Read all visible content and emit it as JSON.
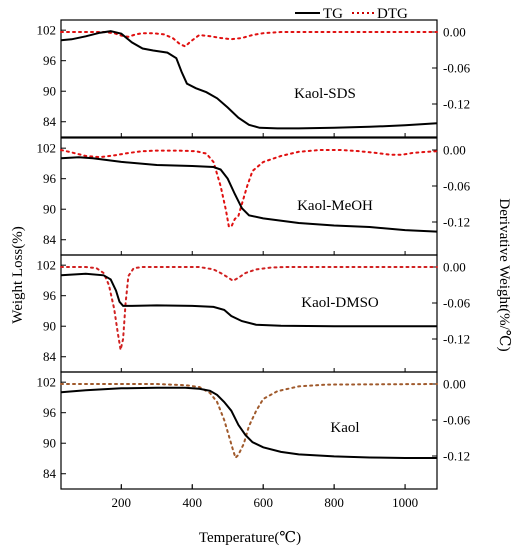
{
  "chart_data": {
    "type": "line",
    "xlabel": "Temperature(℃)",
    "ylabel_left": "Weight Loss(%)",
    "ylabel_right": "Derivative Weight(%/℃)",
    "xlim": [
      30,
      1090
    ],
    "x_ticks": [
      200,
      400,
      600,
      800,
      1000
    ],
    "x_tick_labels": [
      "200",
      "400",
      "600",
      "800",
      "1000"
    ],
    "tg_ylim": [
      81,
      104
    ],
    "tg_ticks": [
      84,
      90,
      96,
      102
    ],
    "tg_tick_labels": [
      "84",
      "90",
      "96",
      "102"
    ],
    "dtg_ylim": [
      -0.175,
      0.02
    ],
    "dtg_ticks": [
      0.0,
      -0.06,
      -0.12
    ],
    "dtg_tick_labels": [
      "0.00",
      "-0.06",
      "-0.12"
    ],
    "legend": {
      "placement": "top-right",
      "entries": [
        {
          "label": "TG",
          "color": "#000000",
          "style": "solid"
        },
        {
          "label": "DTG",
          "color": "#cc0000",
          "style": "dotted"
        }
      ]
    },
    "panels": [
      {
        "label": "Kaol-SDS",
        "dtg_color": "#e01010",
        "tg": [
          [
            30,
            100
          ],
          [
            60,
            100.2
          ],
          [
            100,
            100.8
          ],
          [
            140,
            101.5
          ],
          [
            170,
            101.8
          ],
          [
            200,
            101.3
          ],
          [
            230,
            99.6
          ],
          [
            260,
            98.4
          ],
          [
            290,
            98.0
          ],
          [
            330,
            97.6
          ],
          [
            355,
            96.5
          ],
          [
            370,
            93.8
          ],
          [
            385,
            91.5
          ],
          [
            410,
            90.6
          ],
          [
            440,
            89.8
          ],
          [
            470,
            88.6
          ],
          [
            500,
            86.8
          ],
          [
            530,
            84.8
          ],
          [
            560,
            83.4
          ],
          [
            590,
            82.8
          ],
          [
            640,
            82.7
          ],
          [
            700,
            82.7
          ],
          [
            800,
            82.8
          ],
          [
            900,
            83.0
          ],
          [
            1000,
            83.3
          ],
          [
            1090,
            83.7
          ]
        ],
        "dtg": [
          [
            30,
            0.0
          ],
          [
            100,
            0.0
          ],
          [
            150,
            0.0
          ],
          [
            180,
            -0.002
          ],
          [
            200,
            -0.006
          ],
          [
            220,
            -0.008
          ],
          [
            240,
            -0.004
          ],
          [
            260,
            -0.002
          ],
          [
            290,
            -0.002
          ],
          [
            320,
            -0.004
          ],
          [
            345,
            -0.01
          ],
          [
            365,
            -0.02
          ],
          [
            380,
            -0.024
          ],
          [
            395,
            -0.016
          ],
          [
            420,
            -0.005
          ],
          [
            450,
            -0.007
          ],
          [
            480,
            -0.01
          ],
          [
            510,
            -0.012
          ],
          [
            540,
            -0.01
          ],
          [
            570,
            -0.005
          ],
          [
            600,
            -0.002
          ],
          [
            650,
            0.0
          ],
          [
            1090,
            0.0
          ]
        ]
      },
      {
        "label": "Kaol-MeOH",
        "dtg_color": "#e01010",
        "tg": [
          [
            30,
            100
          ],
          [
            80,
            100.2
          ],
          [
            120,
            100.0
          ],
          [
            200,
            99.3
          ],
          [
            300,
            98.7
          ],
          [
            400,
            98.5
          ],
          [
            460,
            98.3
          ],
          [
            480,
            97.8
          ],
          [
            500,
            96.0
          ],
          [
            520,
            93.0
          ],
          [
            540,
            90.2
          ],
          [
            560,
            88.8
          ],
          [
            600,
            88.2
          ],
          [
            700,
            87.3
          ],
          [
            800,
            86.8
          ],
          [
            900,
            86.5
          ],
          [
            1000,
            85.9
          ],
          [
            1090,
            85.6
          ]
        ],
        "dtg": [
          [
            30,
            0.0
          ],
          [
            60,
            -0.004
          ],
          [
            100,
            -0.01
          ],
          [
            140,
            -0.012
          ],
          [
            180,
            -0.009
          ],
          [
            220,
            -0.005
          ],
          [
            260,
            -0.002
          ],
          [
            300,
            -0.001
          ],
          [
            360,
            -0.001
          ],
          [
            410,
            -0.002
          ],
          [
            440,
            -0.006
          ],
          [
            460,
            -0.02
          ],
          [
            480,
            -0.06
          ],
          [
            495,
            -0.1
          ],
          [
            503,
            -0.127
          ],
          [
            510,
            -0.128
          ],
          [
            520,
            -0.115
          ],
          [
            530,
            -0.11
          ],
          [
            540,
            -0.09
          ],
          [
            555,
            -0.06
          ],
          [
            570,
            -0.035
          ],
          [
            600,
            -0.02
          ],
          [
            650,
            -0.01
          ],
          [
            700,
            -0.003
          ],
          [
            760,
            0.0
          ],
          [
            820,
            0.0
          ],
          [
            870,
            -0.002
          ],
          [
            920,
            -0.005
          ],
          [
            960,
            -0.008
          ],
          [
            990,
            -0.008
          ],
          [
            1020,
            -0.005
          ],
          [
            1060,
            -0.003
          ],
          [
            1090,
            -0.002
          ]
        ]
      },
      {
        "label": "Kaol-DMSO",
        "dtg_color": "#d02020",
        "tg": [
          [
            30,
            100
          ],
          [
            100,
            100.3
          ],
          [
            150,
            100.0
          ],
          [
            170,
            99.2
          ],
          [
            185,
            97.0
          ],
          [
            195,
            94.8
          ],
          [
            205,
            94.0
          ],
          [
            230,
            94.0
          ],
          [
            300,
            94.1
          ],
          [
            400,
            94.0
          ],
          [
            460,
            93.8
          ],
          [
            490,
            93.2
          ],
          [
            510,
            92.0
          ],
          [
            540,
            91.0
          ],
          [
            580,
            90.3
          ],
          [
            650,
            90.1
          ],
          [
            800,
            90.0
          ],
          [
            1090,
            90.0
          ]
        ],
        "dtg": [
          [
            30,
            0.0
          ],
          [
            100,
            0.0
          ],
          [
            130,
            -0.002
          ],
          [
            150,
            -0.01
          ],
          [
            165,
            -0.03
          ],
          [
            180,
            -0.07
          ],
          [
            190,
            -0.11
          ],
          [
            198,
            -0.138
          ],
          [
            205,
            -0.12
          ],
          [
            212,
            -0.06
          ],
          [
            220,
            -0.015
          ],
          [
            235,
            -0.002
          ],
          [
            260,
            0.0
          ],
          [
            420,
            0.0
          ],
          [
            460,
            -0.004
          ],
          [
            480,
            -0.01
          ],
          [
            500,
            -0.017
          ],
          [
            515,
            -0.023
          ],
          [
            530,
            -0.018
          ],
          [
            550,
            -0.01
          ],
          [
            580,
            -0.004
          ],
          [
            620,
            -0.001
          ],
          [
            660,
            0.0
          ],
          [
            1090,
            0.0
          ]
        ]
      },
      {
        "label": "Kaol",
        "dtg_color": "#a05a2c",
        "tg": [
          [
            30,
            100
          ],
          [
            100,
            100.4
          ],
          [
            200,
            100.8
          ],
          [
            300,
            100.9
          ],
          [
            380,
            100.9
          ],
          [
            420,
            100.7
          ],
          [
            450,
            100.3
          ],
          [
            470,
            99.5
          ],
          [
            490,
            98.1
          ],
          [
            510,
            96.4
          ],
          [
            530,
            93.6
          ],
          [
            550,
            91.6
          ],
          [
            570,
            90.2
          ],
          [
            600,
            89.2
          ],
          [
            650,
            88.3
          ],
          [
            700,
            87.8
          ],
          [
            800,
            87.4
          ],
          [
            900,
            87.2
          ],
          [
            1000,
            87.1
          ],
          [
            1090,
            87.1
          ]
        ],
        "dtg": [
          [
            30,
            0.0
          ],
          [
            100,
            0.0
          ],
          [
            200,
            0.0
          ],
          [
            300,
            0.0
          ],
          [
            380,
            -0.002
          ],
          [
            420,
            -0.005
          ],
          [
            450,
            -0.015
          ],
          [
            470,
            -0.03
          ],
          [
            490,
            -0.06
          ],
          [
            505,
            -0.09
          ],
          [
            515,
            -0.11
          ],
          [
            522,
            -0.123
          ],
          [
            530,
            -0.118
          ],
          [
            545,
            -0.1
          ],
          [
            560,
            -0.07
          ],
          [
            580,
            -0.045
          ],
          [
            600,
            -0.025
          ],
          [
            640,
            -0.012
          ],
          [
            700,
            -0.004
          ],
          [
            780,
            -0.001
          ],
          [
            1090,
            0.0
          ]
        ]
      }
    ]
  }
}
